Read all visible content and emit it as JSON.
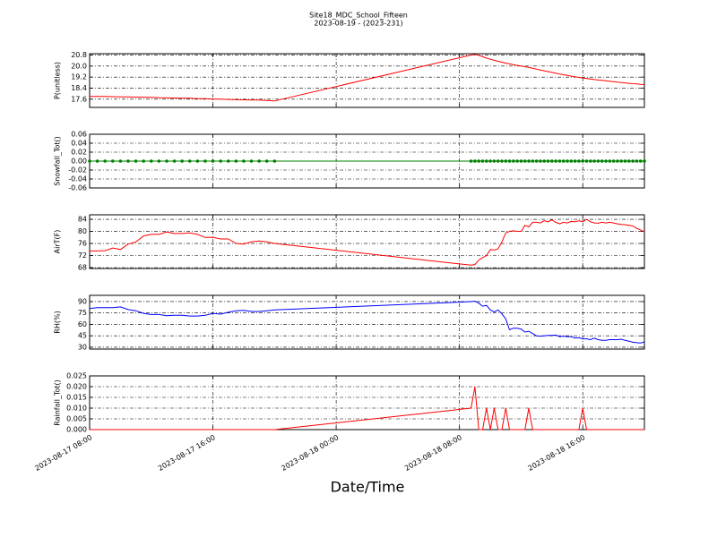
{
  "chart_data": {
    "type": "line",
    "title": "Site18_MDC_School_Fifteen",
    "subtitle": "2023-08-19 - (2023-231)",
    "xlabel": "Date/Time",
    "grid": true,
    "xlim": [
      "2023-08-17 08:00",
      "2023-08-18 20:00"
    ],
    "xticks": [
      "2023-08-17 08:00",
      "2023-08-17 16:00",
      "2023-08-18 00:00",
      "2023-08-18 08:00",
      "2023-08-18 16:00"
    ],
    "x": [
      "2023-08-17 08:00",
      "2023-08-17 08:30",
      "2023-08-17 09:00",
      "2023-08-17 09:30",
      "2023-08-17 10:00",
      "2023-08-17 10:30",
      "2023-08-17 11:00",
      "2023-08-17 11:30",
      "2023-08-17 12:00",
      "2023-08-17 12:30",
      "2023-08-17 13:00",
      "2023-08-17 13:30",
      "2023-08-17 14:00",
      "2023-08-17 14:30",
      "2023-08-17 15:00",
      "2023-08-17 15:30",
      "2023-08-17 16:00",
      "2023-08-17 16:30",
      "2023-08-17 17:00",
      "2023-08-17 17:30",
      "2023-08-17 18:00",
      "2023-08-17 18:30",
      "2023-08-17 19:00",
      "2023-08-17 19:30",
      "2023-08-17 20:00",
      "2023-08-18 08:45",
      "2023-08-18 09:00",
      "2023-08-18 09:15",
      "2023-08-18 09:30",
      "2023-08-18 09:45",
      "2023-08-18 10:00",
      "2023-08-18 10:15",
      "2023-08-18 10:30",
      "2023-08-18 10:45",
      "2023-08-18 11:00",
      "2023-08-18 11:15",
      "2023-08-18 11:30",
      "2023-08-18 11:45",
      "2023-08-18 12:00",
      "2023-08-18 12:15",
      "2023-08-18 12:30",
      "2023-08-18 12:45",
      "2023-08-18 13:00",
      "2023-08-18 13:15",
      "2023-08-18 13:30",
      "2023-08-18 13:45",
      "2023-08-18 14:00",
      "2023-08-18 14:15",
      "2023-08-18 14:30",
      "2023-08-18 14:45",
      "2023-08-18 15:00",
      "2023-08-18 15:15",
      "2023-08-18 15:30",
      "2023-08-18 15:45",
      "2023-08-18 16:00",
      "2023-08-18 16:15",
      "2023-08-18 16:30",
      "2023-08-18 16:45",
      "2023-08-18 17:00",
      "2023-08-18 17:15",
      "2023-08-18 17:30",
      "2023-08-18 17:45",
      "2023-08-18 18:00",
      "2023-08-18 18:15",
      "2023-08-18 18:30",
      "2023-08-18 18:45",
      "2023-08-18 19:00",
      "2023-08-18 19:15",
      "2023-08-18 19:30",
      "2023-08-18 19:45",
      "2023-08-18 20:00"
    ],
    "panels": [
      {
        "ylabel": "P(unitless)",
        "color": "#ff0000",
        "ylim": [
          17.0,
          20.9
        ],
        "yticks": [
          17.6,
          18.4,
          19.2,
          {
            "value": 20,
            "label": "20.0"
          },
          20.8
        ],
        "values": [
          17.8,
          17.8,
          17.79,
          17.78,
          17.77,
          17.76,
          17.75,
          17.74,
          17.73,
          17.71,
          17.7,
          17.68,
          17.67,
          17.66,
          17.64,
          17.63,
          17.61,
          17.6,
          17.58,
          17.56,
          17.55,
          17.54,
          17.53,
          17.51,
          17.47,
          20.8,
          20.85,
          20.78,
          20.68,
          20.58,
          20.5,
          20.42,
          20.35,
          20.28,
          20.22,
          20.16,
          20.1,
          20.05,
          20.0,
          19.96,
          19.9,
          19.84,
          19.78,
          19.72,
          19.66,
          19.6,
          19.54,
          19.48,
          19.42,
          19.37,
          19.32,
          19.27,
          19.22,
          19.18,
          19.14,
          19.1,
          19.06,
          19.02,
          18.99,
          18.96,
          18.93,
          18.9,
          18.87,
          18.84,
          18.81,
          18.78,
          18.75,
          18.72,
          18.7,
          18.68,
          18.66
        ]
      },
      {
        "ylabel": "Snowfall_Tot()",
        "color": "#008000",
        "marker": true,
        "ylim": [
          -0.06,
          0.06
        ],
        "yticks": [
          -0.06,
          -0.04,
          -0.02,
          {
            "value": 0,
            "label": "0.00"
          },
          0.02,
          0.04,
          0.06
        ],
        "values": [
          0,
          0,
          0,
          0,
          0,
          0,
          0,
          0,
          0,
          0,
          0,
          0,
          0,
          0,
          0,
          0,
          0,
          0,
          0,
          0,
          0,
          0,
          0,
          0,
          0,
          0,
          0,
          0,
          0,
          0,
          0,
          0,
          0,
          0,
          0,
          0,
          0,
          0,
          0,
          0,
          0,
          0,
          0,
          0,
          0,
          0,
          0,
          0,
          0,
          0,
          0,
          0,
          0,
          0,
          0,
          0,
          0,
          0,
          0,
          0,
          0,
          0,
          0,
          0,
          0,
          0,
          0,
          0,
          0,
          0,
          0
        ]
      },
      {
        "ylabel": "AirT(F)",
        "color": "#ff0000",
        "ylim": [
          67.7,
          85.5
        ],
        "yticks": [
          68,
          72,
          76,
          80,
          84
        ],
        "values": [
          73.5,
          73.5,
          73.6,
          74.5,
          74.0,
          75.8,
          76.5,
          78.5,
          79.0,
          79.0,
          79.8,
          79.3,
          79.3,
          79.5,
          79.0,
          78.0,
          78.0,
          77.5,
          77.5,
          76.0,
          75.8,
          76.5,
          76.8,
          76.5,
          76.0,
          68.8,
          69.0,
          70.5,
          71.3,
          72.0,
          74.0,
          73.8,
          74.2,
          76.5,
          79.5,
          80.0,
          80.2,
          80.0,
          80.0,
          82.0,
          81.5,
          83.0,
          83.0,
          82.8,
          83.5,
          83.2,
          83.8,
          83.0,
          82.5,
          83.0,
          82.8,
          83.3,
          83.2,
          83.5,
          83.2,
          84.0,
          83.2,
          82.8,
          82.7,
          83.0,
          82.8,
          83.0,
          82.8,
          82.5,
          82.3,
          82.2,
          82.0,
          81.8,
          81.0,
          80.5,
          79.8
        ]
      },
      {
        "ylabel": "RH(%)",
        "color": "#0000ff",
        "ylim": [
          27.6,
          98.2
        ],
        "yticks": [
          30,
          45,
          60,
          75,
          90
        ],
        "values": [
          81,
          82,
          82,
          82,
          83,
          79.5,
          78,
          74.5,
          73,
          73,
          71.5,
          72,
          72,
          71,
          71,
          72,
          74.5,
          73.5,
          76,
          78,
          78.5,
          77,
          77,
          78,
          79,
          90,
          90.5,
          88,
          84,
          85,
          79,
          76.5,
          79,
          74,
          67,
          53,
          55,
          55,
          54,
          50,
          51,
          48,
          45,
          44.5,
          45,
          45.5,
          45.5,
          46,
          44,
          44.5,
          44,
          44,
          42,
          42.5,
          41,
          41,
          40,
          42,
          40,
          39,
          39,
          40,
          40,
          40,
          40.5,
          39,
          38,
          36.5,
          36,
          35.5,
          37
        ]
      },
      {
        "ylabel": "Rainfall_Tot()",
        "color": "#ff0000",
        "ylim": [
          0,
          0.025
        ],
        "yticks": [
          {
            "value": 0,
            "label": "0.000"
          },
          0.005,
          {
            "value": 0.01,
            "label": "0.010"
          },
          0.015,
          {
            "value": 0.02,
            "label": "0.020"
          },
          0.025
        ],
        "values": [
          0,
          0,
          0,
          0,
          0,
          0,
          0,
          0,
          0,
          0,
          0,
          0,
          0,
          0,
          0,
          0,
          0,
          0,
          0,
          0,
          0,
          0,
          0,
          0,
          0,
          0.01,
          0.02,
          0,
          0,
          0.01,
          0,
          0.01,
          0,
          0,
          0.01,
          0,
          0,
          0,
          0,
          0,
          0.01,
          0,
          0,
          0,
          0,
          0,
          0,
          0,
          0,
          0,
          0,
          0,
          0,
          0,
          0.01,
          0,
          0,
          0,
          0,
          0,
          0,
          0,
          0,
          0,
          0,
          0,
          0,
          0,
          0,
          0,
          0
        ]
      }
    ]
  }
}
